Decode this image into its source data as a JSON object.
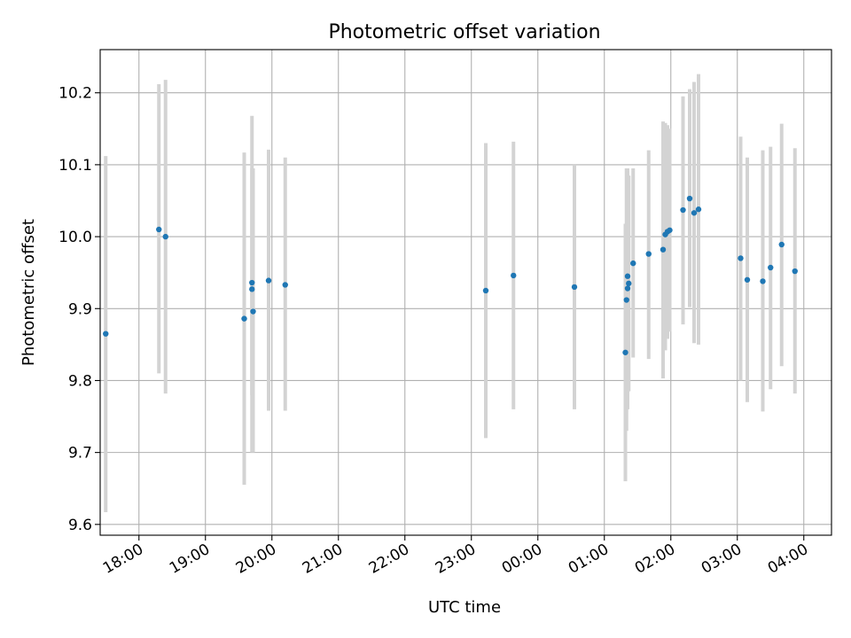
{
  "chart_data": {
    "type": "scatter",
    "title": "Photometric offset variation",
    "xlabel": "UTC time",
    "ylabel": "Photometric offset",
    "xlim": [
      "17:25",
      "04:25"
    ],
    "ylim": [
      9.585,
      10.26
    ],
    "x_ticks": [
      "18:00",
      "19:00",
      "20:00",
      "21:00",
      "22:00",
      "23:00",
      "00:00",
      "01:00",
      "02:00",
      "03:00",
      "04:00"
    ],
    "y_ticks": [
      9.6,
      9.7,
      9.8,
      9.9,
      10.0,
      10.1,
      10.2
    ],
    "y_tick_labels": [
      "9.6",
      "9.7",
      "9.8",
      "9.9",
      "10.0",
      "10.1",
      "10.2"
    ],
    "grid": true,
    "point_color": "#1f77b4",
    "errorbar_color": "#d3d3d3",
    "points": [
      {
        "t": "17:30",
        "y": 9.865,
        "lo": 9.617,
        "hi": 10.112
      },
      {
        "t": "18:18",
        "y": 10.01,
        "lo": 9.81,
        "hi": 10.212
      },
      {
        "t": "18:24",
        "y": 10.0,
        "lo": 9.782,
        "hi": 10.218
      },
      {
        "t": "19:35",
        "y": 9.886,
        "lo": 9.655,
        "hi": 10.117
      },
      {
        "t": "19:42",
        "y": 9.927,
        "lo": 9.7,
        "hi": 10.168
      },
      {
        "t": "19:42",
        "y": 9.936,
        "lo": 9.78,
        "hi": 10.095
      },
      {
        "t": "19:43",
        "y": 9.896,
        "lo": 9.7,
        "hi": 10.095
      },
      {
        "t": "19:57",
        "y": 9.939,
        "lo": 9.758,
        "hi": 10.121
      },
      {
        "t": "20:12",
        "y": 9.933,
        "lo": 9.758,
        "hi": 10.11
      },
      {
        "t": "23:13",
        "y": 9.925,
        "lo": 9.72,
        "hi": 10.13
      },
      {
        "t": "23:38",
        "y": 9.946,
        "lo": 9.76,
        "hi": 10.132
      },
      {
        "t": "00:33",
        "y": 9.93,
        "lo": 9.76,
        "hi": 10.1
      },
      {
        "t": "01:19",
        "y": 9.839,
        "lo": 9.66,
        "hi": 10.018
      },
      {
        "t": "01:20",
        "y": 9.912,
        "lo": 9.73,
        "hi": 10.095
      },
      {
        "t": "01:21",
        "y": 9.928,
        "lo": 9.76,
        "hi": 10.095
      },
      {
        "t": "01:21",
        "y": 9.945,
        "lo": 9.785,
        "hi": 10.095
      },
      {
        "t": "01:22",
        "y": 9.935,
        "lo": 9.785,
        "hi": 10.085
      },
      {
        "t": "01:26",
        "y": 9.963,
        "lo": 9.832,
        "hi": 10.095
      },
      {
        "t": "01:40",
        "y": 9.976,
        "lo": 9.83,
        "hi": 10.12
      },
      {
        "t": "01:53",
        "y": 9.982,
        "lo": 9.803,
        "hi": 10.16
      },
      {
        "t": "01:55",
        "y": 10.003,
        "lo": 9.842,
        "hi": 10.158
      },
      {
        "t": "01:57",
        "y": 10.007,
        "lo": 9.858,
        "hi": 10.155
      },
      {
        "t": "01:59",
        "y": 10.009,
        "lo": 9.868,
        "hi": 10.15
      },
      {
        "t": "02:11",
        "y": 10.037,
        "lo": 9.878,
        "hi": 10.195
      },
      {
        "t": "02:17",
        "y": 10.053,
        "lo": 9.902,
        "hi": 10.205
      },
      {
        "t": "02:21",
        "y": 10.033,
        "lo": 9.852,
        "hi": 10.215
      },
      {
        "t": "02:25",
        "y": 10.038,
        "lo": 9.85,
        "hi": 10.226
      },
      {
        "t": "03:03",
        "y": 9.97,
        "lo": 9.8,
        "hi": 10.139
      },
      {
        "t": "03:09",
        "y": 9.94,
        "lo": 9.77,
        "hi": 10.11
      },
      {
        "t": "03:23",
        "y": 9.938,
        "lo": 9.757,
        "hi": 10.12
      },
      {
        "t": "03:30",
        "y": 9.957,
        "lo": 9.788,
        "hi": 10.125
      },
      {
        "t": "03:40",
        "y": 9.989,
        "lo": 9.82,
        "hi": 10.157
      },
      {
        "t": "03:52",
        "y": 9.952,
        "lo": 9.782,
        "hi": 10.123
      }
    ]
  }
}
